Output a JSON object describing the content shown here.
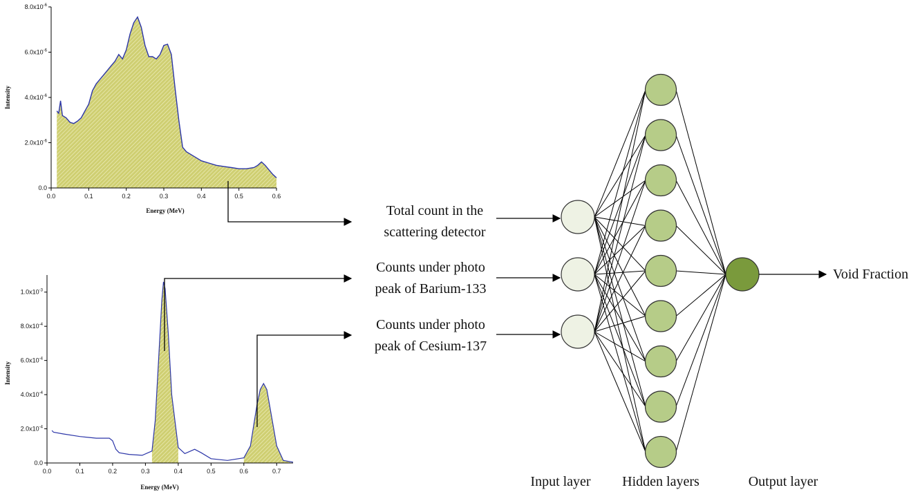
{
  "diagram": {
    "inputs": [
      {
        "line1": "Total count in the",
        "line2": "scattering detector"
      },
      {
        "line1": "Counts under photo",
        "line2": "peak of Barium-133"
      },
      {
        "line1": "Counts under photo",
        "line2": "peak of Cesium-137"
      }
    ],
    "output_label": "Void Fraction",
    "layer_labels": {
      "input": "Input layer",
      "hidden": "Hidden layers",
      "output": "Output layer"
    },
    "network": {
      "input_nodes": 3,
      "hidden_nodes": 9,
      "output_nodes": 1
    },
    "colors": {
      "input_node": "#eef2e4",
      "hidden_node": "#b6cc88",
      "output_node": "#7a9a3c",
      "spectrum_line": "#2b35a8",
      "fill": "#c7c767"
    }
  },
  "chart_data": [
    {
      "type": "area",
      "title": "",
      "xlabel": "Energy (MeV)",
      "ylabel": "Intensity",
      "xlim": [
        0,
        0.6
      ],
      "ylim": [
        0,
        8e-06
      ],
      "xticks": [
        "0.0",
        "0.1",
        "0.2",
        "0.3",
        "0.4",
        "0.5",
        "0.6"
      ],
      "yticks": [
        "0.0",
        "2.0x10-6",
        "4.0x10-6",
        "6.0x10-6",
        "8.0x10-6"
      ],
      "x": [
        0.015,
        0.02,
        0.025,
        0.03,
        0.04,
        0.05,
        0.06,
        0.07,
        0.08,
        0.09,
        0.1,
        0.11,
        0.12,
        0.13,
        0.14,
        0.15,
        0.16,
        0.17,
        0.18,
        0.19,
        0.2,
        0.21,
        0.22,
        0.23,
        0.24,
        0.25,
        0.26,
        0.27,
        0.28,
        0.29,
        0.3,
        0.31,
        0.32,
        0.33,
        0.34,
        0.35,
        0.36,
        0.38,
        0.4,
        0.42,
        0.44,
        0.46,
        0.48,
        0.5,
        0.52,
        0.54,
        0.55,
        0.56,
        0.57,
        0.58,
        0.59,
        0.6
      ],
      "y": [
        3.4e-06,
        3.3e-06,
        3.85e-06,
        3.2e-06,
        3.1e-06,
        2.9e-06,
        2.85e-06,
        2.95e-06,
        3.1e-06,
        3.4e-06,
        3.7e-06,
        4.3e-06,
        4.6e-06,
        4.8e-06,
        5e-06,
        5.2e-06,
        5.4e-06,
        5.6e-06,
        5.9e-06,
        5.7e-06,
        6.1e-06,
        6.8e-06,
        7.3e-06,
        7.55e-06,
        7.1e-06,
        6.3e-06,
        5.8e-06,
        5.8e-06,
        5.7e-06,
        5.9e-06,
        6.3e-06,
        6.35e-06,
        5.9e-06,
        4.4e-06,
        3e-06,
        1.8e-06,
        1.6e-06,
        1.4e-06,
        1.2e-06,
        1.1e-06,
        1e-06,
        9.5e-07,
        9e-07,
        8.5e-07,
        8.5e-07,
        9e-07,
        1e-06,
        1.15e-06,
        1e-06,
        8e-07,
        6e-07,
        4.5e-07
      ]
    },
    {
      "type": "line",
      "title": "",
      "xlabel": "Energy (MeV)",
      "ylabel": "Intensity",
      "xlim": [
        0,
        0.75
      ],
      "ylim": [
        0,
        0.0011
      ],
      "xticks": [
        "0.0",
        "0.1",
        "0.2",
        "0.3",
        "0.4",
        "0.5",
        "0.6",
        "0.7"
      ],
      "yticks": [
        "0.0",
        "2.0x10-4",
        "4.0x10-4",
        "6.0x10-4",
        "8.0x10-4",
        "1.0x10-3"
      ],
      "x": [
        0.015,
        0.02,
        0.05,
        0.1,
        0.15,
        0.19,
        0.2,
        0.21,
        0.22,
        0.25,
        0.29,
        0.32,
        0.33,
        0.34,
        0.35,
        0.355,
        0.36,
        0.37,
        0.38,
        0.4,
        0.42,
        0.45,
        0.47,
        0.5,
        0.55,
        0.6,
        0.62,
        0.63,
        0.64,
        0.65,
        0.66,
        0.67,
        0.68,
        0.7,
        0.72,
        0.75
      ],
      "y": [
        0.00019,
        0.00018,
        0.00017,
        0.000155,
        0.000145,
        0.000145,
        0.00013,
        8e-05,
        6e-05,
        5e-05,
        4.5e-05,
        7e-05,
        0.00025,
        0.0006,
        0.00095,
        0.00106,
        0.00102,
        0.00075,
        0.0004,
        9e-05,
        5.5e-05,
        8e-05,
        6e-05,
        2.5e-05,
        1.5e-05,
        3e-05,
        0.0001,
        0.00022,
        0.00034,
        0.00043,
        0.000465,
        0.00043,
        0.00032,
        0.0001,
        1.5e-05,
        5e-06
      ],
      "shaded_ranges": [
        [
          0.32,
          0.4
        ],
        [
          0.6,
          0.74
        ]
      ]
    }
  ]
}
